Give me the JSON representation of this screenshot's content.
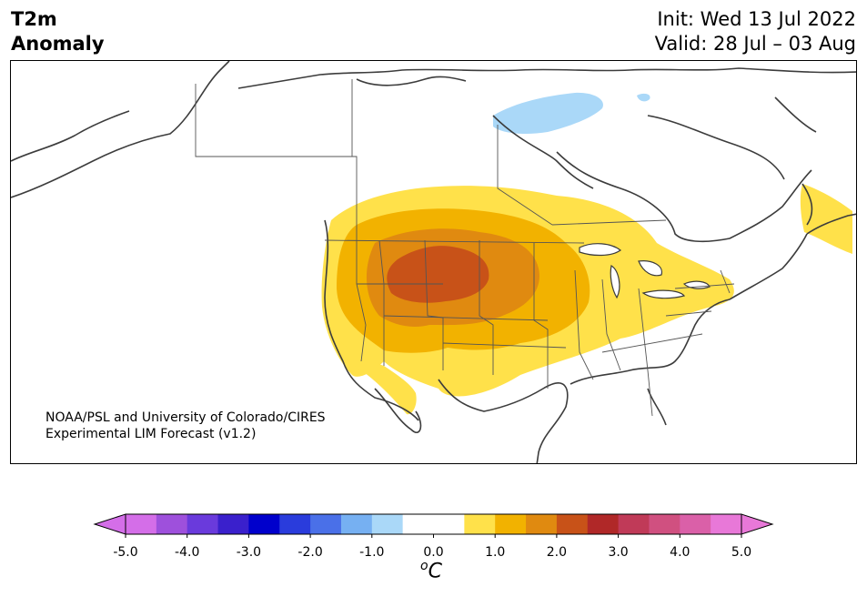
{
  "header": {
    "title_line1": "T2m",
    "title_line2": "Anomaly",
    "init": "Init: Wed 13 Jul 2022",
    "valid": "Valid: 28 Jul – 03 Aug"
  },
  "credit": {
    "line1": "NOAA/PSL and University of Colorado/CIRES",
    "line2": "Experimental LIM Forecast (v1.2)"
  },
  "colorbar": {
    "unit_base": "C",
    "unit_sup": "o",
    "tick_labels": [
      "-5.0",
      "-4.0",
      "-3.0",
      "-2.0",
      "-1.0",
      "0.0",
      "1.0",
      "2.0",
      "3.0",
      "4.0",
      "5.0"
    ],
    "colors": [
      "#d46ee8",
      "#9e50dc",
      "#6a3adc",
      "#3a20cc",
      "#0000cc",
      "#2a3cdc",
      "#4a70e8",
      "#76b0f2",
      "#aad8f8",
      "#ffffff",
      "#ffffff",
      "#ffe14a",
      "#f2b200",
      "#e08a10",
      "#c85218",
      "#b02828",
      "#c03a58",
      "#d05080",
      "#da60a8",
      "#e878d8"
    ]
  },
  "map": {
    "anomaly_colors": {
      "warm1": "#ffe14a",
      "warm2": "#f2b200",
      "warm3": "#e08a10",
      "warm4": "#c85218",
      "cool1": "#aad8f8"
    }
  }
}
